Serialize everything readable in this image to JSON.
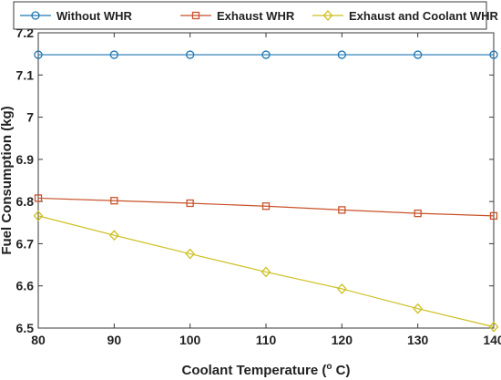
{
  "chart_data": {
    "type": "line",
    "x": [
      80,
      90,
      100,
      110,
      120,
      130,
      140
    ],
    "xlim": [
      80,
      140
    ],
    "ylim": [
      6.5,
      7.2
    ],
    "xticks": [
      "80",
      "90",
      "100",
      "110",
      "120",
      "130",
      "140"
    ],
    "yticks": [
      "6.5",
      "6.6",
      "6.7",
      "6.8",
      "6.9",
      "7",
      "7.1",
      "7.2"
    ],
    "xlabel_main": "Coolant Temperature (",
    "xlabel_sup": "o",
    "xlabel_end": " C)",
    "ylabel": "Fuel Consumption (kg)",
    "legend_position": "top",
    "grid": false,
    "series": [
      {
        "name": "Without WHR",
        "values": [
          7.148,
          7.148,
          7.148,
          7.148,
          7.148,
          7.148,
          7.148
        ],
        "color": "#1f77b4",
        "marker": "circle"
      },
      {
        "name": "Exhaust WHR",
        "values": [
          6.808,
          6.802,
          6.796,
          6.789,
          6.78,
          6.772,
          6.766
        ],
        "color": "#c8522a",
        "marker": "square"
      },
      {
        "name": "Exhaust and Coolant WHR",
        "values": [
          6.766,
          6.72,
          6.676,
          6.633,
          6.593,
          6.546,
          6.503
        ],
        "color": "#cdbf1e",
        "marker": "diamond"
      }
    ]
  }
}
